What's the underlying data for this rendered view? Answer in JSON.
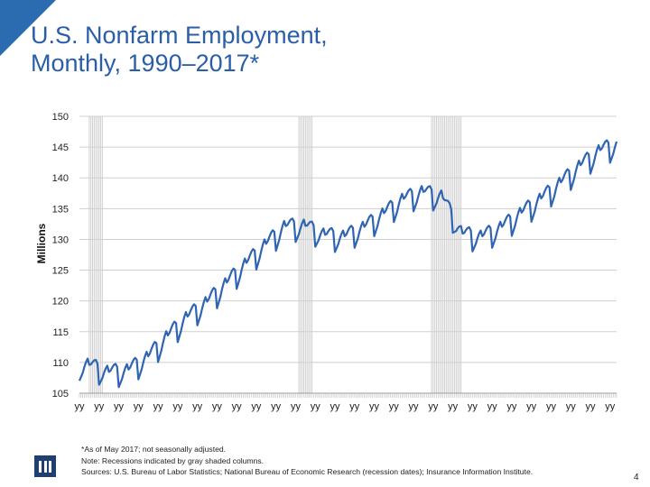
{
  "slide": {
    "title_line1": "U.S. Nonfarm Employment,",
    "title_line2": "Monthly, 1990–2017*",
    "page_number": "4",
    "accent_color": "#2b6cb0",
    "title_color": "#2a5ea8",
    "logo_icon": "iii-logo-icon"
  },
  "notes": {
    "line1": "*As of May 2017; not seasonally adjusted.",
    "line2": "Note: Recessions indicated by gray shaded columns.",
    "line3": "Sources: U.S. Bureau of Labor Statistics;  National Bureau of Economic Research (recession dates); Insurance Information Institute."
  },
  "chart_data": {
    "type": "line",
    "ylabel": "Millions",
    "ylim": [
      105,
      150
    ],
    "yticks": [
      105,
      110,
      115,
      120,
      125,
      130,
      135,
      140,
      145,
      150
    ],
    "x_start": "1990-01",
    "x_end": "2017-05",
    "x_tick_label": "yy",
    "x_tick_count": 28,
    "grid": true,
    "recessions": [
      {
        "start": "1990-07",
        "end": "1991-03"
      },
      {
        "start": "2001-03",
        "end": "2001-11"
      },
      {
        "start": "2007-12",
        "end": "2009-06"
      }
    ],
    "series": [
      {
        "color": "#2f64b3",
        "seasonal_amplitude_millions": 1.6,
        "annual_average_millions": {
          "1990": 109.5,
          "1991": 108.3,
          "1992": 108.6,
          "1993": 110.7,
          "1994": 114.1,
          "1995": 117.2,
          "1996": 119.6,
          "1997": 122.7,
          "1998": 125.9,
          "1999": 129.0,
          "2000": 132.0,
          "2001": 132.1,
          "2002": 130.6,
          "2003": 130.3,
          "2004": 131.8,
          "2005": 134.0,
          "2006": 136.4,
          "2007": 137.6,
          "2008": 136.8,
          "2009": 130.8,
          "2010": 130.3,
          "2011": 131.8,
          "2012": 134.1,
          "2013": 136.4,
          "2014": 139.0,
          "2015": 141.8,
          "2016": 144.3,
          "2017": 145.5
        }
      }
    ]
  }
}
